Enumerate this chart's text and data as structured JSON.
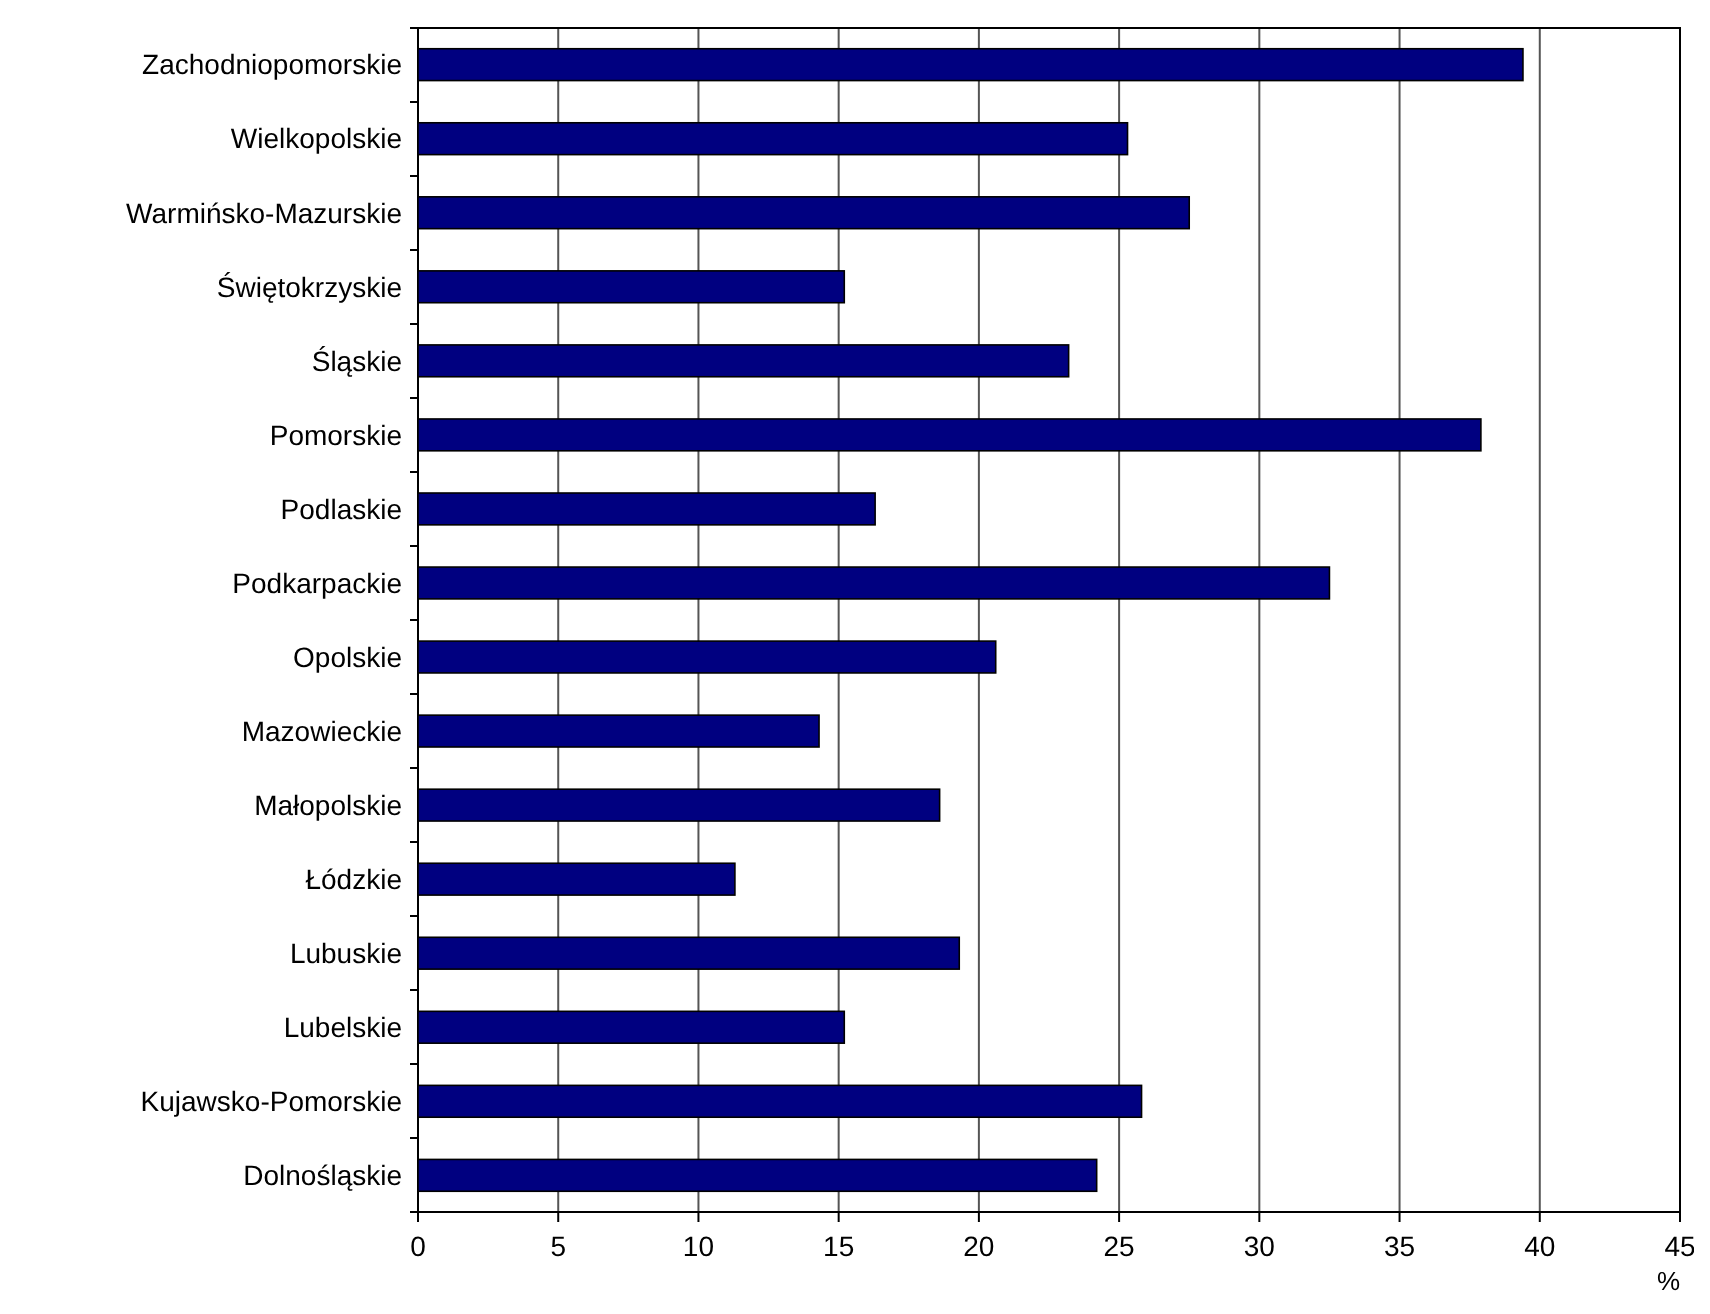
{
  "chart_data": {
    "type": "bar",
    "orientation": "horizontal",
    "categories": [
      "Zachodniopomorskie",
      "Wielkopolskie",
      "Warmińsko-Mazurskie",
      "Świętokrzyskie",
      "Śląskie",
      "Pomorskie",
      "Podlaskie",
      "Podkarpackie",
      "Opolskie",
      "Mazowieckie",
      "Małopolskie",
      "Łódzkie",
      "Lubuskie",
      "Lubelskie",
      "Kujawsko-Pomorskie",
      "Dolnośląskie"
    ],
    "values": [
      39.4,
      25.3,
      27.5,
      15.2,
      23.2,
      37.9,
      16.3,
      32.5,
      20.6,
      14.3,
      18.6,
      11.3,
      19.3,
      15.2,
      25.8,
      24.2
    ],
    "color": "#000080",
    "xlabel": "%",
    "xlim": [
      0,
      45
    ],
    "xticks": [
      0,
      5,
      10,
      15,
      20,
      25,
      30,
      35,
      40,
      45
    ],
    "grid": "x"
  }
}
